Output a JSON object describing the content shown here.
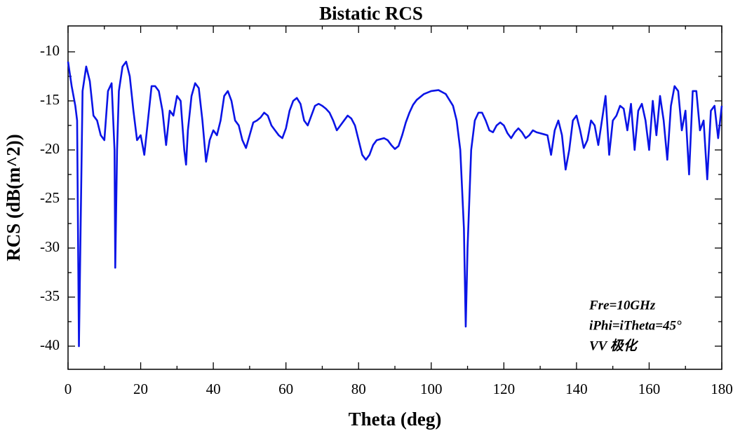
{
  "chart_data": {
    "type": "line",
    "title": "Bistatic RCS",
    "xlabel": "Theta (deg)",
    "ylabel": "RCS (dB(m^2))",
    "annotations": [
      "Fre=10GHz",
      "iPhi=iTheta=45°",
      "VV 极化"
    ],
    "xlim": [
      0,
      180
    ],
    "ylim": [
      -42.36,
      -7.36
    ],
    "xticks": [
      0,
      20,
      40,
      60,
      80,
      100,
      120,
      140,
      160,
      180
    ],
    "yticks": [
      -10,
      -15,
      -20,
      -25,
      -30,
      -35,
      -40
    ],
    "xminorticks": [
      10,
      30,
      50,
      70,
      90,
      110,
      130,
      150,
      170
    ],
    "yminorticks": [
      -12.5,
      -17.5,
      -22.5,
      -27.5,
      -32.5,
      -37.5
    ],
    "series": [
      {
        "color": "#0a14e6",
        "x": [
          0,
          1,
          2,
          2.5,
          3,
          3.5,
          4,
          5,
          6,
          7,
          8,
          9,
          10,
          11,
          12,
          12.8,
          13,
          13.5,
          14,
          15,
          16,
          17,
          18,
          19,
          20,
          21,
          22,
          23,
          24,
          25,
          26,
          27,
          28,
          29,
          30,
          31,
          32,
          32.5,
          33,
          34,
          35,
          36,
          37,
          38,
          39,
          40,
          41,
          42,
          43,
          44,
          45,
          46,
          47,
          48,
          49,
          50,
          51,
          52,
          53,
          54,
          55,
          56,
          57,
          58,
          59,
          60,
          61,
          62,
          63,
          64,
          65,
          66,
          67,
          68,
          69,
          70,
          71,
          72,
          73,
          74,
          75,
          76,
          77,
          78,
          79,
          80,
          81,
          82,
          83,
          84,
          85,
          86,
          87,
          88,
          89,
          90,
          91,
          92,
          93,
          94,
          95,
          96,
          98,
          100,
          102,
          104,
          106,
          107,
          108,
          109,
          109.5,
          110,
          111,
          112,
          113,
          114,
          115,
          116,
          117,
          118,
          119,
          120,
          121,
          122,
          123,
          124,
          125,
          126,
          127,
          128,
          129,
          130,
          131,
          132,
          133,
          134,
          135,
          136,
          137,
          138,
          139,
          140,
          141,
          142,
          143,
          144,
          145,
          146,
          147,
          148,
          149,
          150,
          151,
          152,
          153,
          154,
          155,
          156,
          157,
          158,
          159,
          160,
          161,
          162,
          163,
          164,
          165,
          166,
          167,
          168,
          169,
          170,
          171,
          172,
          173,
          174,
          175,
          176,
          177,
          178,
          179,
          180
        ],
        "values": [
          -11,
          -13.5,
          -15.5,
          -17,
          -40,
          -27,
          -14,
          -11.5,
          -13,
          -16.5,
          -17,
          -18.5,
          -19,
          -14,
          -13.2,
          -20,
          -32,
          -20,
          -14,
          -11.5,
          -11,
          -12.5,
          -16,
          -19,
          -18.5,
          -20.5,
          -17,
          -13.5,
          -13.5,
          -14,
          -16,
          -19.5,
          -16,
          -16.5,
          -14.5,
          -15,
          -20,
          -21.5,
          -18,
          -14.5,
          -13.2,
          -13.7,
          -17,
          -21.2,
          -19,
          -18,
          -18.5,
          -17,
          -14.5,
          -14,
          -15,
          -17,
          -17.5,
          -19,
          -19.8,
          -18.5,
          -17.2,
          -17,
          -16.7,
          -16.2,
          -16.5,
          -17.5,
          -18,
          -18.5,
          -18.8,
          -17.8,
          -16,
          -15,
          -14.7,
          -15.3,
          -17,
          -17.5,
          -16.5,
          -15.5,
          -15.3,
          -15.5,
          -15.8,
          -16.2,
          -17,
          -18,
          -17.5,
          -17,
          -16.5,
          -16.8,
          -17.5,
          -19,
          -20.5,
          -21,
          -20.5,
          -19.5,
          -19,
          -18.9,
          -18.8,
          -19,
          -19.5,
          -19.9,
          -19.6,
          -18.5,
          -17.2,
          -16.2,
          -15.4,
          -14.9,
          -14.3,
          -14,
          -13.9,
          -14.3,
          -15.5,
          -17,
          -20,
          -28,
          -38,
          -30,
          -20,
          -17,
          -16.2,
          -16.2,
          -17,
          -18,
          -18.2,
          -17.5,
          -17.2,
          -17.5,
          -18.3,
          -18.8,
          -18.2,
          -17.8,
          -18.2,
          -18.8,
          -18.5,
          -18,
          -18.2,
          -18.3,
          -18.4,
          -18.5,
          -20.5,
          -18,
          -17,
          -18.5,
          -22,
          -20,
          -17,
          -16.5,
          -18,
          -19.8,
          -19,
          -17,
          -17.5,
          -19.5,
          -17,
          -14.5,
          -20.5,
          -17,
          -16.5,
          -15.5,
          -15.8,
          -18,
          -15.3,
          -20,
          -16,
          -15.3,
          -17,
          -20,
          -15,
          -18.5,
          -14.5,
          -17,
          -21,
          -15.5,
          -13.5,
          -14,
          -18,
          -16,
          -22.5,
          -14,
          -14,
          -18,
          -17,
          -23,
          -16,
          -15.5,
          -18.8,
          -15.5
        ]
      }
    ]
  }
}
